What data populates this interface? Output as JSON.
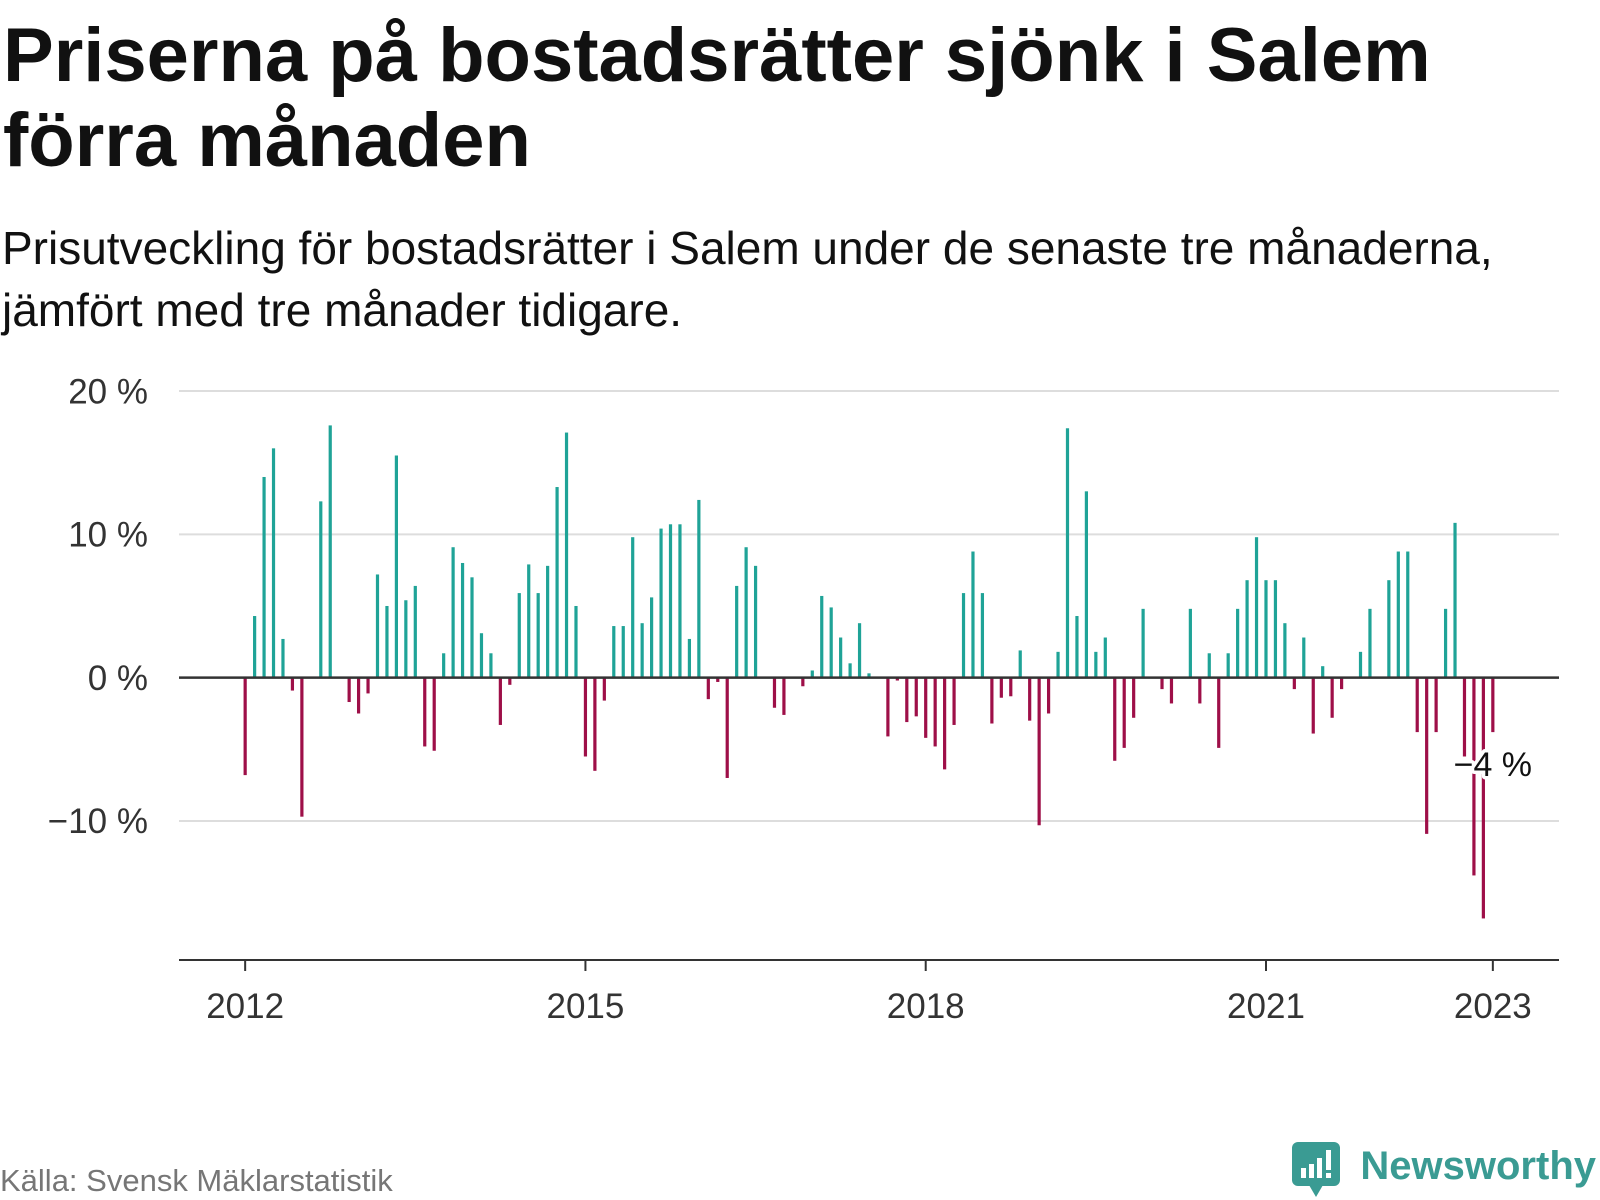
{
  "colors": {
    "positive": "#1fa397",
    "negative": "#9e0f48",
    "zero_line": "#333333",
    "grid": "#dddddd",
    "axis": "#333333"
  },
  "source": "Källa: Svensk Mäklarstatistik",
  "brand": {
    "name": "Newsworthy",
    "icon": "newsworthy-logo-icon",
    "color": "#3a9b93"
  },
  "chart_data": {
    "type": "bar",
    "title": "Priserna på bostadsrätter sjönk i Salem förra månaden",
    "subtitle": "Prisutveckling för bostadsrätter i Salem under de senaste tre månaderna, jämfört med tre månader tidigare.",
    "xlabel": "",
    "ylabel": "",
    "grid": true,
    "legend": "none",
    "xlim": [
      "2011-06",
      "2023-08"
    ],
    "ylim": [
      -19.7,
      20
    ],
    "yticks": {
      "values": [
        20,
        10,
        0,
        -10
      ],
      "labels": [
        "20 %",
        "10 %",
        "0 %",
        "−10 %"
      ]
    },
    "xticks": {
      "values": [
        "2012-01",
        "2015-01",
        "2018-01",
        "2021-01",
        "2023-01"
      ],
      "labels": [
        "2012",
        "2015",
        "2018",
        "2021",
        "2023"
      ]
    },
    "x": [
      "2012-01",
      "2012-02",
      "2012-03",
      "2012-04",
      "2012-05",
      "2012-06",
      "2012-07",
      "2012-08",
      "2012-09",
      "2012-10",
      "2012-11",
      "2012-12",
      "2013-01",
      "2013-02",
      "2013-03",
      "2013-04",
      "2013-05",
      "2013-06",
      "2013-07",
      "2013-08",
      "2013-09",
      "2013-10",
      "2013-11",
      "2013-12",
      "2014-01",
      "2014-02",
      "2014-03",
      "2014-04",
      "2014-05",
      "2014-06",
      "2014-07",
      "2014-08",
      "2014-09",
      "2014-10",
      "2014-11",
      "2014-12",
      "2015-01",
      "2015-02",
      "2015-03",
      "2015-04",
      "2015-05",
      "2015-06",
      "2015-07",
      "2015-08",
      "2015-09",
      "2015-10",
      "2015-11",
      "2015-12",
      "2016-01",
      "2016-02",
      "2016-03",
      "2016-04",
      "2016-05",
      "2016-06",
      "2016-07",
      "2016-08",
      "2016-09",
      "2016-10",
      "2016-11",
      "2016-12",
      "2017-01",
      "2017-02",
      "2017-03",
      "2017-04",
      "2017-05",
      "2017-06",
      "2017-07",
      "2017-08",
      "2017-09",
      "2017-10",
      "2017-11",
      "2017-12",
      "2018-01",
      "2018-02",
      "2018-03",
      "2018-04",
      "2018-05",
      "2018-06",
      "2018-07",
      "2018-08",
      "2018-09",
      "2018-10",
      "2018-11",
      "2018-12",
      "2019-01",
      "2019-02",
      "2019-03",
      "2019-04",
      "2019-05",
      "2019-06",
      "2019-07",
      "2019-08",
      "2019-09",
      "2019-10",
      "2019-11",
      "2019-12",
      "2020-01",
      "2020-02",
      "2020-03",
      "2020-04",
      "2020-05",
      "2020-06",
      "2020-07",
      "2020-08",
      "2020-09",
      "2020-10",
      "2020-11",
      "2020-12",
      "2021-01",
      "2021-02",
      "2021-03",
      "2021-04",
      "2021-05",
      "2021-06",
      "2021-07",
      "2021-08",
      "2021-09",
      "2021-10",
      "2021-11",
      "2021-12",
      "2022-01",
      "2022-02",
      "2022-03",
      "2022-04",
      "2022-05",
      "2022-06",
      "2022-07",
      "2022-08",
      "2022-09",
      "2022-10",
      "2022-11",
      "2022-12",
      "2023-01"
    ],
    "values": [
      -6.8,
      4.3,
      14.0,
      16.0,
      2.7,
      -0.9,
      -9.7,
      0,
      12.3,
      17.6,
      0,
      -1.7,
      -2.5,
      -1.1,
      7.2,
      5.0,
      15.5,
      5.4,
      6.4,
      -4.8,
      -5.1,
      1.7,
      9.1,
      8.0,
      7.0,
      3.1,
      1.7,
      -3.3,
      -0.5,
      5.9,
      7.9,
      5.9,
      7.8,
      13.3,
      17.1,
      5.0,
      -5.5,
      -6.5,
      -1.6,
      3.6,
      3.6,
      9.8,
      3.8,
      5.6,
      10.4,
      10.7,
      10.7,
      2.7,
      12.4,
      -1.5,
      -0.3,
      -7.0,
      6.4,
      9.1,
      7.8,
      0,
      -2.1,
      -2.6,
      0,
      -0.6,
      0.5,
      5.7,
      4.9,
      2.8,
      1.0,
      3.8,
      0.3,
      0,
      -4.1,
      -0.2,
      -3.1,
      -2.7,
      -4.2,
      -4.8,
      -6.4,
      -3.3,
      5.9,
      8.8,
      5.9,
      -3.2,
      -1.4,
      -1.3,
      1.9,
      -3.0,
      -10.3,
      -2.5,
      1.8,
      17.4,
      4.3,
      13.0,
      1.8,
      2.8,
      -5.8,
      -4.9,
      -2.8,
      4.8,
      0,
      -0.8,
      -1.8,
      0,
      4.8,
      -1.8,
      1.7,
      -4.9,
      1.7,
      4.8,
      6.8,
      9.8,
      6.8,
      6.8,
      3.8,
      -0.8,
      2.8,
      -3.9,
      0.8,
      -2.8,
      -0.8,
      0,
      1.8,
      4.8,
      0,
      6.8,
      8.8,
      8.8,
      -3.8,
      -10.9,
      -3.8,
      4.8,
      10.8,
      -5.5,
      -13.8,
      -16.8,
      -3.8
    ],
    "annotation": {
      "x": "2023-01",
      "text": "−4 %"
    }
  }
}
